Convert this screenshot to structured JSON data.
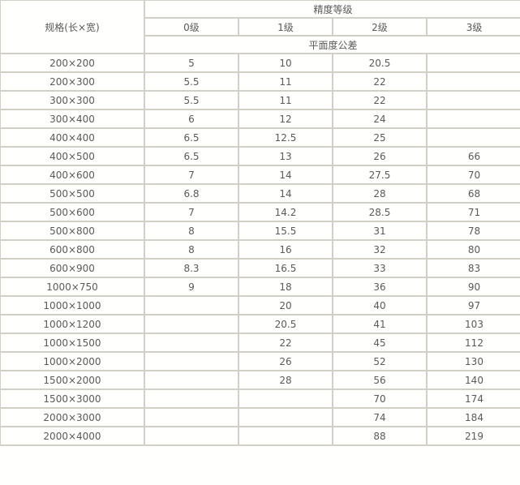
{
  "header": {
    "spec_label": "规格(长×宽)",
    "grade_group": "精度等级",
    "grades": [
      "0级",
      "1级",
      "2级",
      "3级"
    ],
    "tolerance_label": "平面度公差"
  },
  "rows": [
    [
      "200×200",
      "5",
      "10",
      "20.5",
      ""
    ],
    [
      "200×300",
      "5.5",
      "11",
      "22",
      ""
    ],
    [
      "300×300",
      "5.5",
      "11",
      "22",
      ""
    ],
    [
      "300×400",
      "6",
      "12",
      "24",
      ""
    ],
    [
      "400×400",
      "6.5",
      "12.5",
      "25",
      ""
    ],
    [
      "400×500",
      "6.5",
      "13",
      "26",
      "66"
    ],
    [
      "400×600",
      "7",
      "14",
      "27.5",
      "70"
    ],
    [
      "500×500",
      "6.8",
      "14",
      "28",
      "68"
    ],
    [
      "500×600",
      "7",
      "14.2",
      "28.5",
      "71"
    ],
    [
      "500×800",
      "8",
      "15.5",
      "31",
      "78"
    ],
    [
      "600×800",
      "8",
      "16",
      "32",
      "80"
    ],
    [
      "600×900",
      "8.3",
      "16.5",
      "33",
      "83"
    ],
    [
      "1000×750",
      "9",
      "18",
      "36",
      "90"
    ],
    [
      "1000×1000",
      "",
      "20",
      "40",
      "97"
    ],
    [
      "1000×1200",
      "",
      "20.5",
      "41",
      "103"
    ],
    [
      "1000×1500",
      "",
      "22",
      "45",
      "112"
    ],
    [
      "1000×2000",
      "",
      "26",
      "52",
      "130"
    ],
    [
      "1500×2000",
      "",
      "28",
      "56",
      "140"
    ],
    [
      "1500×3000",
      "",
      "",
      "70",
      "174"
    ],
    [
      "2000×3000",
      "",
      "",
      "74",
      "184"
    ],
    [
      "2000×4000",
      "",
      "",
      "88",
      "219"
    ]
  ]
}
